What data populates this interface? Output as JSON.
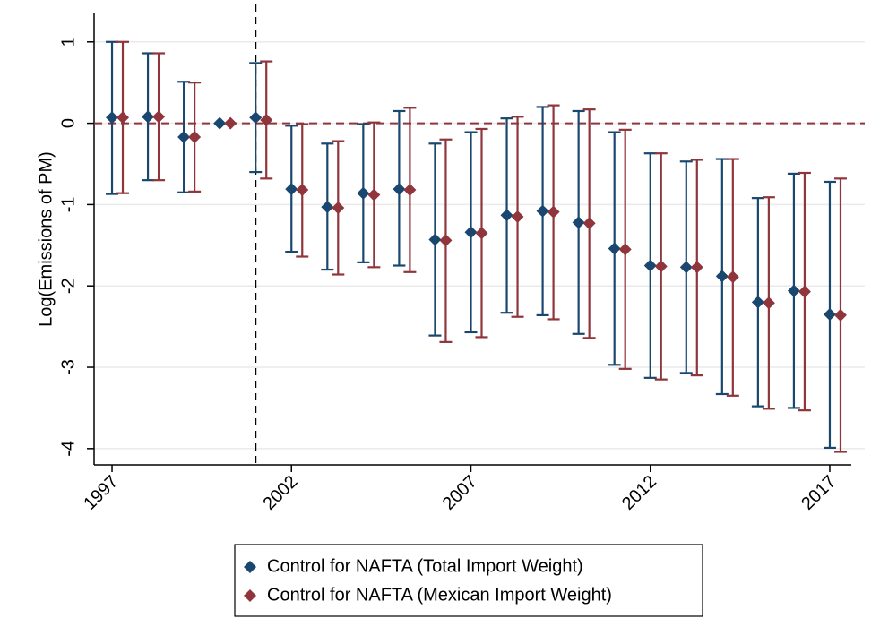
{
  "chart_data": {
    "type": "errorbar",
    "y_label": "Log(Emissions of PM)",
    "x": [
      1997,
      1998,
      1999,
      2000,
      2001,
      2002,
      2003,
      2004,
      2005,
      2006,
      2007,
      2008,
      2009,
      2010,
      2011,
      2012,
      2013,
      2014,
      2015,
      2016,
      2017
    ],
    "series": [
      {
        "name": "Control for NAFTA (Total Import Weight)",
        "color": "#1a476f",
        "values": [
          0.07,
          0.08,
          -0.17,
          0.0,
          0.07,
          -0.81,
          -1.03,
          -0.86,
          -0.81,
          -1.43,
          -1.34,
          -1.13,
          -1.08,
          -1.22,
          -1.54,
          -1.75,
          -1.77,
          -1.88,
          -2.2,
          -2.06,
          -2.35
        ],
        "lower": [
          -0.87,
          -0.7,
          -0.85,
          null,
          -0.6,
          -1.58,
          -1.8,
          -1.71,
          -1.75,
          -2.61,
          -2.57,
          -2.33,
          -2.36,
          -2.59,
          -2.97,
          -3.13,
          -3.07,
          -3.33,
          -3.48,
          -3.5,
          -3.99
        ],
        "upper": [
          1.0,
          0.86,
          0.51,
          null,
          0.74,
          -0.03,
          -0.25,
          -0.01,
          0.15,
          -0.25,
          -0.11,
          0.06,
          0.2,
          0.15,
          -0.11,
          -0.37,
          -0.47,
          -0.44,
          -0.92,
          -0.62,
          -0.72
        ]
      },
      {
        "name": "Control for NAFTA (Mexican Import Weight)",
        "color": "#90353b",
        "values": [
          0.07,
          0.08,
          -0.17,
          0.0,
          0.04,
          -0.82,
          -1.04,
          -0.88,
          -0.82,
          -1.44,
          -1.35,
          -1.15,
          -1.09,
          -1.23,
          -1.55,
          -1.76,
          -1.77,
          -1.89,
          -2.21,
          -2.07,
          -2.36
        ],
        "lower": [
          -0.86,
          -0.7,
          -0.84,
          null,
          -0.68,
          -1.64,
          -1.86,
          -1.77,
          -1.83,
          -2.69,
          -2.63,
          -2.38,
          -2.41,
          -2.64,
          -3.02,
          -3.15,
          -3.1,
          -3.35,
          -3.51,
          -3.53,
          -4.04
        ],
        "upper": [
          1.0,
          0.86,
          0.5,
          null,
          0.76,
          -0.01,
          -0.22,
          0.01,
          0.19,
          -0.2,
          -0.07,
          0.08,
          0.22,
          0.17,
          -0.08,
          -0.37,
          -0.45,
          -0.44,
          -0.91,
          -0.61,
          -0.68
        ]
      }
    ],
    "xlim": [
      1996.5,
      2017.6
    ],
    "xticks": [
      1997,
      2002,
      2007,
      2012,
      2017
    ],
    "ylim": [
      -4.2,
      1.35
    ],
    "yticks": [
      1,
      0,
      -1,
      -2,
      -3,
      -4
    ],
    "grid": true,
    "hline": 0,
    "hline_color": "#90353b",
    "vline": 2001,
    "vline_color": "#000000",
    "legend": "bottom"
  }
}
